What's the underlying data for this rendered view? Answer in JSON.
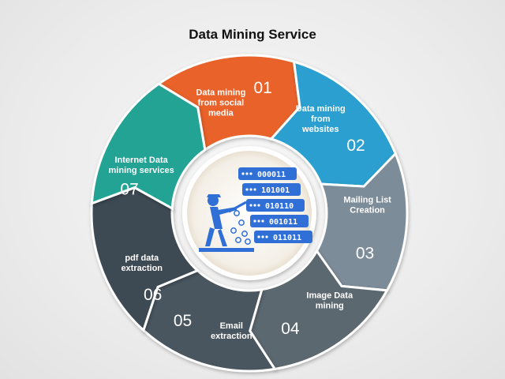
{
  "title": "Data Mining Service",
  "steps": [
    {
      "number": "01",
      "lines": [
        "Data mining",
        "from social",
        "media"
      ],
      "color": "#e8622a"
    },
    {
      "number": "02",
      "lines": [
        "Data mining",
        "from",
        "websites"
      ],
      "color": "#2a9fd0"
    },
    {
      "number": "03",
      "lines": [
        "Mailing List",
        "Creation"
      ],
      "color": "#7d8c99"
    },
    {
      "number": "04",
      "lines": [
        "Image Data",
        "mining"
      ],
      "color": "#5c6770"
    },
    {
      "number": "05",
      "lines": [
        "Email",
        "extraction"
      ],
      "color": "#4a5661"
    },
    {
      "number": "06",
      "lines": [
        "pdf data",
        "extraction"
      ],
      "color": "#3e4852"
    },
    {
      "number": "07",
      "lines": [
        "Internet Data",
        "mining services"
      ],
      "color": "#21a394"
    }
  ],
  "center": {
    "binary_codes": [
      "000011",
      "101001",
      "010110",
      "001011",
      "011011"
    ],
    "accent_color": "#2f6fd6",
    "icon": "data-mining-worker-icon"
  }
}
